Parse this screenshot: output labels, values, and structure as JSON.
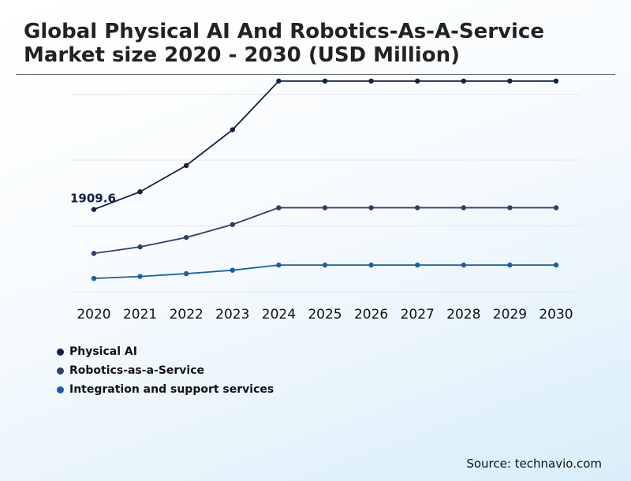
{
  "chart_data": {
    "type": "line",
    "title": "Global Physical AI And Robotics-As-A-Service Market size 2020 - 2030 (USD Million)",
    "categories": [
      "2020",
      "2021",
      "2022",
      "2023",
      "2024",
      "2025",
      "2026",
      "2027",
      "2028",
      "2029",
      "2030"
    ],
    "series": [
      {
        "name": "Physical AI",
        "color": "#0f1f45",
        "values": [
          1909.6,
          2320,
          2930,
          3760,
          4890,
          4890,
          4890,
          4890,
          4890,
          4890,
          4890
        ]
      },
      {
        "name": "Robotics-as-a-Service",
        "color": "#2e3f6e",
        "values": [
          890,
          1040,
          1260,
          1560,
          1950,
          1950,
          1950,
          1950,
          1950,
          1950,
          1950
        ]
      },
      {
        "name": "Integration and support services",
        "color": "#1a5ea8",
        "values": [
          310,
          355,
          420,
          500,
          620,
          620,
          620,
          620,
          620,
          620,
          620
        ]
      }
    ],
    "annotations": [
      {
        "series": 0,
        "index": 0,
        "label": "1909.6"
      }
    ],
    "ylim": [
      0,
      5600
    ],
    "grid": true,
    "legend_position": "bottom-left"
  },
  "source": "Source: technavio.com"
}
